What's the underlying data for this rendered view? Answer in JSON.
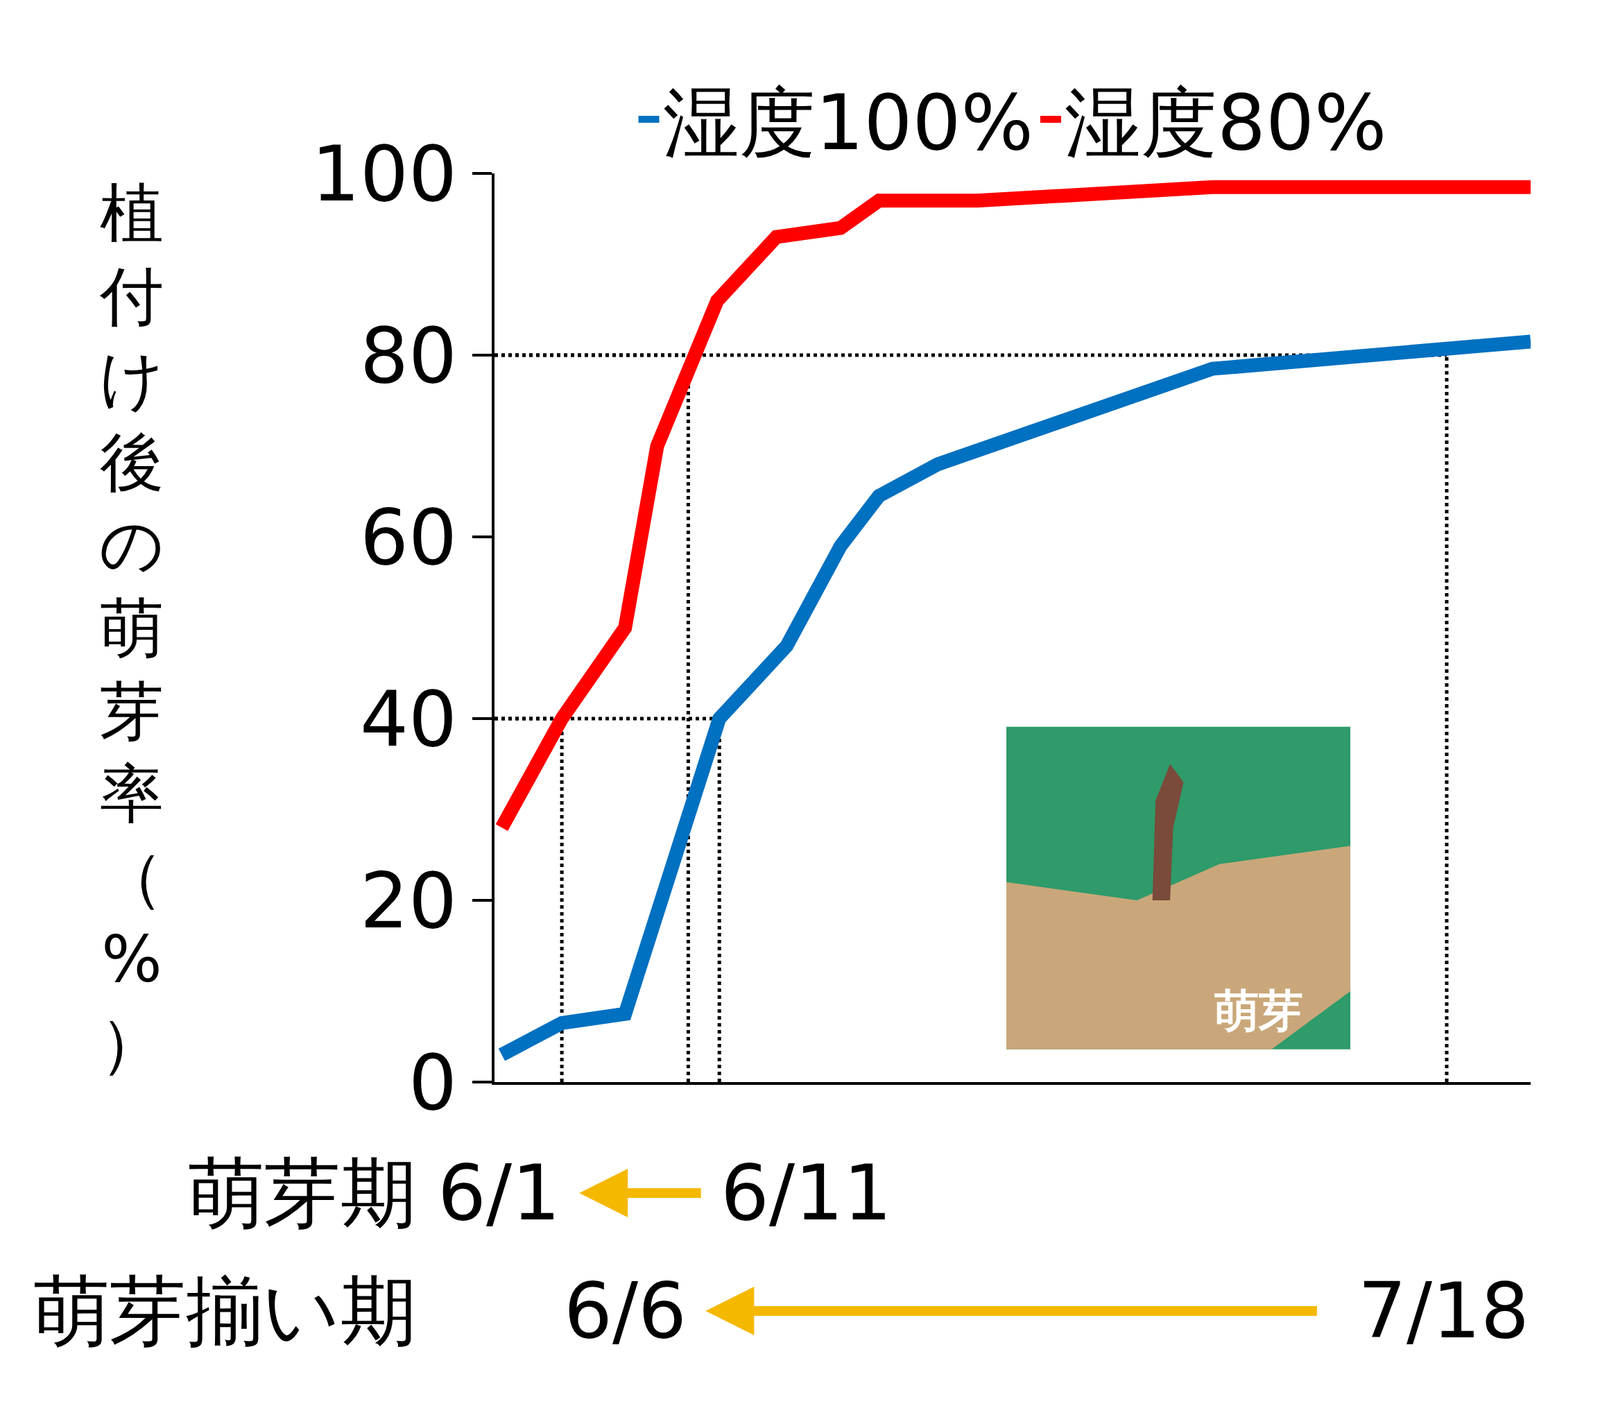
{
  "chart_data": {
    "type": "line",
    "y_label": "植付け後の萌芽率（%）",
    "xlim": [
      0,
      100
    ],
    "xticks": [],
    "ylim": [
      0,
      100
    ],
    "yticks": [
      0,
      20,
      40,
      60,
      80,
      100
    ],
    "tick_labels": "y",
    "grid": false,
    "legend": "top",
    "series": [
      {
        "name": "湿度100%",
        "color": "#0070c0",
        "line_style": "solid",
        "x": [
          0.7,
          6.5,
          12.6,
          21.7,
          28.2,
          33.4,
          37.1,
          42.8,
          46.6,
          69.3,
          100
        ],
        "values": [
          3,
          6.5,
          7.5,
          40,
          48,
          59,
          64.5,
          68,
          69.5,
          78.5,
          81.5
        ]
      },
      {
        "name": "湿度80%",
        "color": "#ff0000",
        "line_style": "solid",
        "x": [
          0.7,
          6.5,
          12.6,
          15.7,
          21.5,
          27.2,
          33.4,
          37.1,
          46.6,
          69.3,
          100
        ],
        "values": [
          28,
          40,
          50,
          70,
          86,
          93,
          94,
          97,
          97,
          98.5,
          98.5
        ]
      }
    ],
    "reference_lines": [
      {
        "date": "6/1",
        "x": 6.5,
        "y": 40
      },
      {
        "date": "6/11",
        "x": 21.7,
        "y": 40
      },
      {
        "date": "6/6",
        "x": 18.7,
        "y": 80
      },
      {
        "date": "7/18",
        "x": 91.9,
        "y": 80
      }
    ],
    "periods": [
      {
        "label": "萌芽期",
        "from": "6/11",
        "to": "6/1"
      },
      {
        "label": "萌芽揃い期",
        "from": "7/18",
        "to": "6/6"
      }
    ],
    "inset_label": "萌芽"
  }
}
